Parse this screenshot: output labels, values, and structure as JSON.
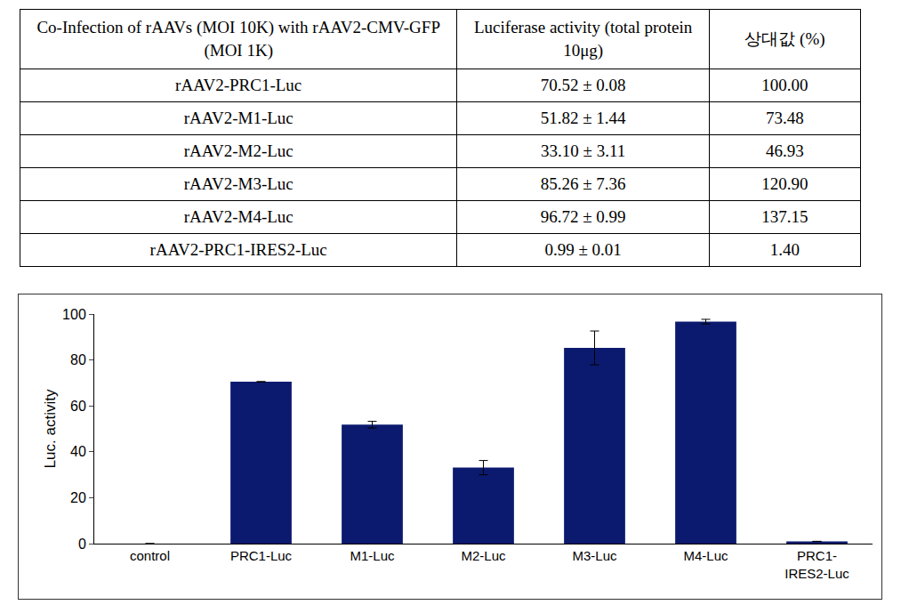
{
  "table": {
    "header": [
      "Co-Infection of rAAVs (MOI 10K) with rAAV2-CMV-GFP (MOI 1K)",
      "Luciferase activity (total protein 10μg)",
      "상대값 (%)"
    ],
    "rows": [
      [
        "rAAV2-PRC1-Luc",
        "70.52 ± 0.08",
        "100.00"
      ],
      [
        "rAAV2-M1-Luc",
        "51.82 ± 1.44",
        "73.48"
      ],
      [
        "rAAV2-M2-Luc",
        "33.10 ± 3.11",
        "46.93"
      ],
      [
        "rAAV2-M3-Luc",
        "85.26 ± 7.36",
        "120.90"
      ],
      [
        "rAAV2-M4-Luc",
        "96.72 ± 0.99",
        "137.15"
      ],
      [
        "rAAV2-PRC1-IRES2-Luc",
        "0.99 ± 0.01",
        "1.40"
      ]
    ]
  },
  "chart_data": {
    "type": "bar",
    "y_label": "Luc. activity",
    "categories": [
      "control",
      "PRC1-Luc",
      "M1-Luc",
      "M2-Luc",
      "M3-Luc",
      "M4-Luc",
      "PRC1-\nIRES2-Luc"
    ],
    "values": [
      0,
      70.52,
      51.82,
      33.1,
      85.26,
      96.72,
      0.99
    ],
    "error": [
      0,
      0.08,
      1.44,
      3.11,
      7.36,
      0.99,
      0.01
    ],
    "color": "#0b1a6e",
    "ylim": [
      0,
      100
    ],
    "yticks": [
      0,
      20,
      40,
      60,
      80,
      100
    ],
    "grid": false
  }
}
